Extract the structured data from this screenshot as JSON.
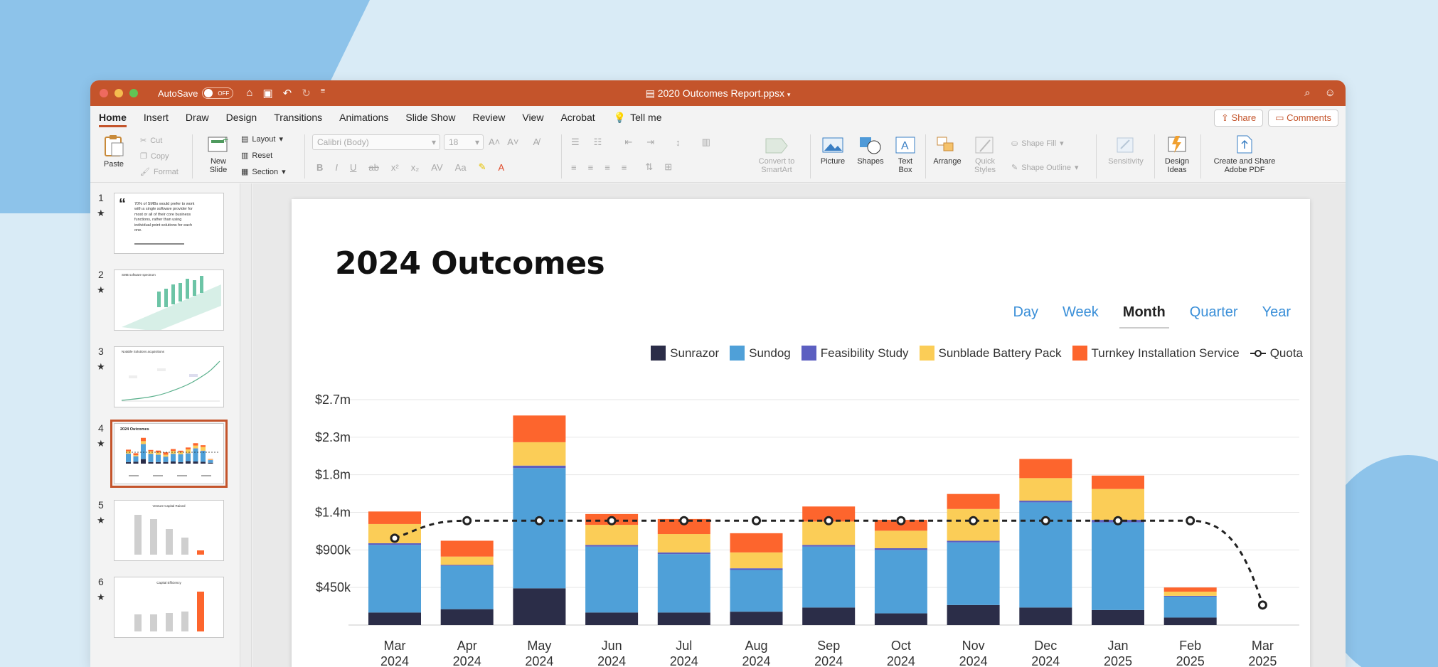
{
  "window": {
    "autosave_label": "AutoSave",
    "autosave_state": "OFF",
    "title": "2020 Outcomes Report.ppsx"
  },
  "menu": {
    "tabs": [
      "Home",
      "Insert",
      "Draw",
      "Design",
      "Transitions",
      "Animations",
      "Slide Show",
      "Review",
      "View",
      "Acrobat"
    ],
    "active": "Home",
    "tell_me": "Tell me",
    "share": "Share",
    "comments": "Comments"
  },
  "ribbon": {
    "paste": "Paste",
    "cut": "Cut",
    "copy": "Copy",
    "format": "Format",
    "new_slide_1": "New",
    "new_slide_2": "Slide",
    "layout": "Layout",
    "reset": "Reset",
    "section": "Section",
    "font_name": "Calibri (Body)",
    "font_size": "18",
    "convert_1": "Convert to",
    "convert_2": "SmartArt",
    "picture": "Picture",
    "shapes": "Shapes",
    "textbox_1": "Text",
    "textbox_2": "Box",
    "arrange": "Arrange",
    "quick_1": "Quick",
    "quick_2": "Styles",
    "shape_fill": "Shape Fill",
    "shape_outline": "Shape Outline",
    "sensitivity": "Sensitivity",
    "design_1": "Design",
    "design_2": "Ideas",
    "pdf_1": "Create and Share",
    "pdf_2": "Adobe PDF"
  },
  "slides": [
    {
      "num": "1",
      "thumb_text": "70% of SMBs would prefer to work with a single software provider for most or all of their core business functions, rather than using individual point solutions for each one."
    },
    {
      "num": "2",
      "thumb_text": "SMB software spectrum"
    },
    {
      "num": "3",
      "thumb_text": "Notable Solutions acquisitions"
    },
    {
      "num": "4",
      "thumb_text": "2024 Outcomes",
      "selected": true
    },
    {
      "num": "5",
      "thumb_text": "Venture Capital Raised"
    },
    {
      "num": "6",
      "thumb_text": "Capital Efficiency"
    }
  ],
  "slide": {
    "title": "2024 Outcomes",
    "periods": [
      "Day",
      "Week",
      "Month",
      "Quarter",
      "Year"
    ],
    "active_period": "Month"
  },
  "chart_data": {
    "type": "bar",
    "stacked": true,
    "categories": [
      "Mar 2024",
      "Apr 2024",
      "May 2024",
      "Jun 2024",
      "Jul 2024",
      "Aug 2024",
      "Sep 2024",
      "Oct 2024",
      "Nov 2024",
      "Dec 2024",
      "Jan 2025",
      "Feb 2025",
      "Mar 2025"
    ],
    "y_ticks": [
      "$450k",
      "$900k",
      "$1.4m",
      "$1.8m",
      "$2.3m",
      "$2.7m"
    ],
    "ylim": [
      0,
      2700000
    ],
    "legend_position": "top-right",
    "grid": true,
    "series": [
      {
        "name": "Sunrazor",
        "color": "#2b2d48",
        "values": [
          150000,
          190000,
          440000,
          150000,
          150000,
          160000,
          210000,
          140000,
          240000,
          210000,
          180000,
          90000,
          0
        ]
      },
      {
        "name": "Sundog",
        "color": "#4fa0d8",
        "values": [
          810000,
          520000,
          1440000,
          790000,
          700000,
          500000,
          730000,
          760000,
          750000,
          1260000,
          1050000,
          250000,
          0
        ]
      },
      {
        "name": "Feasibility Study",
        "color": "#5c5fc1",
        "values": [
          20000,
          10000,
          30000,
          20000,
          20000,
          20000,
          20000,
          20000,
          20000,
          20000,
          30000,
          10000,
          0
        ]
      },
      {
        "name": "Sunblade Battery Pack",
        "color": "#fbcd57",
        "values": [
          230000,
          100000,
          280000,
          240000,
          220000,
          190000,
          280000,
          210000,
          380000,
          270000,
          370000,
          50000,
          0
        ]
      },
      {
        "name": "Turnkey Installation Service",
        "color": "#fd652d",
        "values": [
          150000,
          190000,
          320000,
          130000,
          180000,
          230000,
          180000,
          130000,
          180000,
          230000,
          160000,
          50000,
          0
        ]
      }
    ],
    "line_series": {
      "name": "Quota",
      "color": "#222222",
      "values": [
        1040000,
        1250000,
        1250000,
        1250000,
        1250000,
        1250000,
        1250000,
        1250000,
        1250000,
        1250000,
        1250000,
        1250000,
        240000
      ]
    }
  },
  "colors": {
    "accent": "#c4542b",
    "period_link": "#3a8fd8"
  }
}
